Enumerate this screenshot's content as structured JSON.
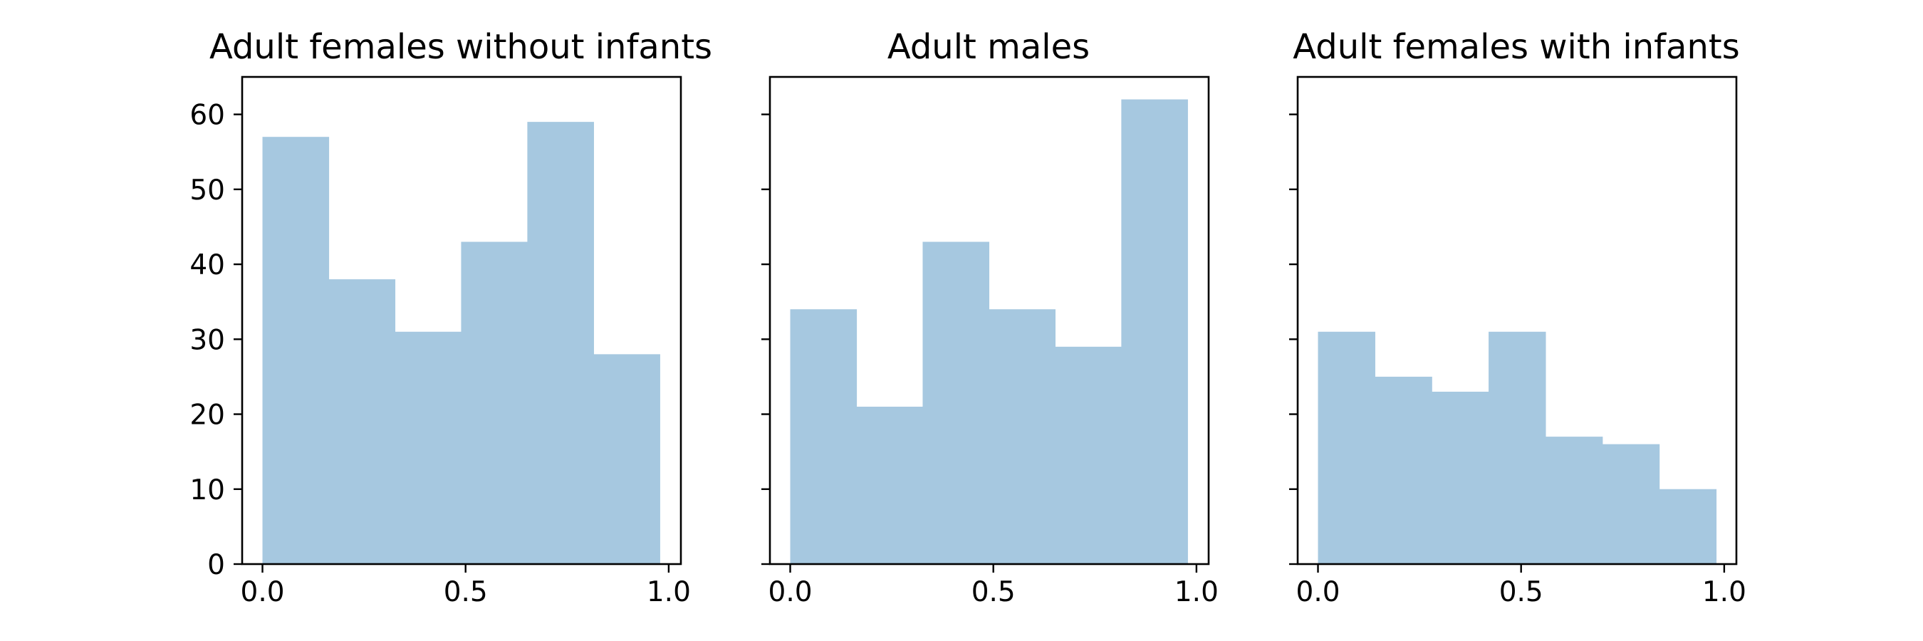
{
  "chart_data": [
    {
      "type": "bar",
      "title": "Adult females without infants",
      "bin_edges": [
        0.0,
        0.163,
        0.326,
        0.489,
        0.652,
        0.815,
        0.978
      ],
      "values": [
        57,
        38,
        31,
        43,
        59,
        28
      ],
      "xlim": [
        -0.05,
        1.03
      ],
      "ylim": [
        0,
        65
      ],
      "xticks": [
        0.0,
        0.5,
        1.0
      ],
      "xtick_labels": [
        "0.0",
        "0.5",
        "1.0"
      ],
      "yticks": [
        0,
        10,
        20,
        30,
        40,
        50,
        60
      ],
      "ytick_labels": [
        "0",
        "10",
        "20",
        "30",
        "40",
        "50",
        "60"
      ],
      "color": "#a6c8e0",
      "grid": false
    },
    {
      "type": "bar",
      "title": "Adult males",
      "bin_edges": [
        0.0,
        0.163,
        0.326,
        0.489,
        0.652,
        0.815,
        0.978
      ],
      "values": [
        34,
        21,
        43,
        34,
        29,
        62
      ],
      "xlim": [
        -0.05,
        1.03
      ],
      "ylim": [
        0,
        65
      ],
      "xticks": [
        0.0,
        0.5,
        1.0
      ],
      "xtick_labels": [
        "0.0",
        "0.5",
        "1.0"
      ],
      "yticks": [
        0,
        10,
        20,
        30,
        40,
        50,
        60
      ],
      "ytick_labels": [],
      "color": "#a6c8e0",
      "grid": false
    },
    {
      "type": "bar",
      "title": "Adult females with infants",
      "bin_edges": [
        0.0,
        0.14,
        0.28,
        0.42,
        0.56,
        0.7,
        0.84,
        0.98
      ],
      "values": [
        31,
        25,
        23,
        31,
        17,
        16,
        10
      ],
      "xlim": [
        -0.05,
        1.03
      ],
      "ylim": [
        0,
        65
      ],
      "xticks": [
        0.0,
        0.5,
        1.0
      ],
      "xtick_labels": [
        "0.0",
        "0.5",
        "1.0"
      ],
      "yticks": [
        0,
        10,
        20,
        30,
        40,
        50,
        60
      ],
      "ytick_labels": [],
      "color": "#a6c8e0",
      "grid": false
    }
  ]
}
